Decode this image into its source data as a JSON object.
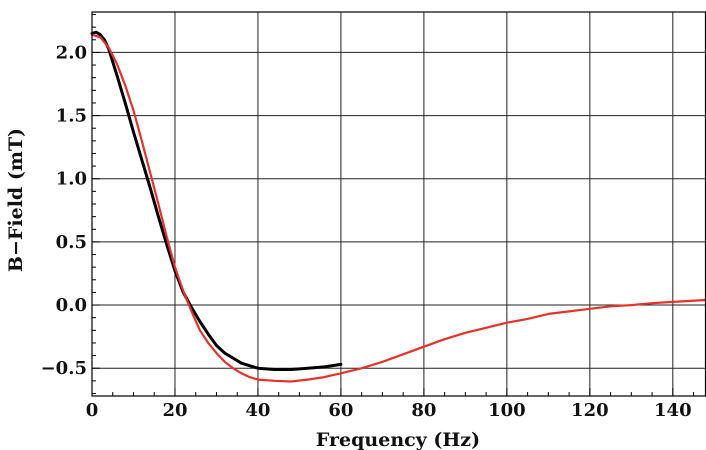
{
  "chart_data": {
    "type": "line",
    "xlabel": "Frequency (Hz)",
    "ylabel": "B−Field (mT)",
    "xlim": [
      0,
      148
    ],
    "ylim": [
      -0.72,
      2.32
    ],
    "grid": true,
    "x_ticks": [
      0,
      20,
      40,
      60,
      80,
      100,
      120,
      140
    ],
    "x_tick_labels": [
      "0",
      "20",
      "40",
      "60",
      "80",
      "100",
      "120",
      "140"
    ],
    "y_ticks": [
      -0.5,
      0.0,
      0.5,
      1.0,
      1.5,
      2.0
    ],
    "y_tick_labels": [
      "−0.5",
      "0.0",
      "0.5",
      "1.0",
      "1.5",
      "2.0"
    ],
    "series": [
      {
        "color": "#000000",
        "style": "measured",
        "points": [
          [
            0,
            2.15
          ],
          [
            1,
            2.16
          ],
          [
            2,
            2.14
          ],
          [
            3,
            2.1
          ],
          [
            4,
            2.03
          ],
          [
            6,
            1.82
          ],
          [
            8,
            1.6
          ],
          [
            10,
            1.37
          ],
          [
            12,
            1.15
          ],
          [
            14,
            0.93
          ],
          [
            16,
            0.7
          ],
          [
            18,
            0.48
          ],
          [
            20,
            0.27
          ],
          [
            22,
            0.1
          ],
          [
            24,
            -0.02
          ],
          [
            26,
            -0.13
          ],
          [
            28,
            -0.23
          ],
          [
            30,
            -0.32
          ],
          [
            32,
            -0.38
          ],
          [
            34,
            -0.42
          ],
          [
            36,
            -0.46
          ],
          [
            38,
            -0.48
          ],
          [
            40,
            -0.5
          ],
          [
            44,
            -0.51
          ],
          [
            48,
            -0.51
          ],
          [
            52,
            -0.5
          ],
          [
            56,
            -0.49
          ],
          [
            60,
            -0.47
          ]
        ]
      },
      {
        "color": "#e8312a",
        "style": "fit",
        "points": [
          [
            0,
            2.14
          ],
          [
            2,
            2.12
          ],
          [
            4,
            2.04
          ],
          [
            6,
            1.91
          ],
          [
            8,
            1.74
          ],
          [
            10,
            1.54
          ],
          [
            12,
            1.3
          ],
          [
            14,
            1.05
          ],
          [
            16,
            0.8
          ],
          [
            18,
            0.54
          ],
          [
            20,
            0.3
          ],
          [
            22,
            0.11
          ],
          [
            24,
            -0.05
          ],
          [
            26,
            -0.2
          ],
          [
            28,
            -0.3
          ],
          [
            30,
            -0.38
          ],
          [
            32,
            -0.45
          ],
          [
            34,
            -0.5
          ],
          [
            36,
            -0.54
          ],
          [
            38,
            -0.57
          ],
          [
            40,
            -0.59
          ],
          [
            44,
            -0.6
          ],
          [
            48,
            -0.605
          ],
          [
            52,
            -0.59
          ],
          [
            56,
            -0.57
          ],
          [
            60,
            -0.54
          ],
          [
            65,
            -0.5
          ],
          [
            70,
            -0.45
          ],
          [
            75,
            -0.39
          ],
          [
            80,
            -0.33
          ],
          [
            85,
            -0.27
          ],
          [
            90,
            -0.22
          ],
          [
            95,
            -0.18
          ],
          [
            100,
            -0.14
          ],
          [
            105,
            -0.11
          ],
          [
            110,
            -0.07
          ],
          [
            115,
            -0.05
          ],
          [
            120,
            -0.03
          ],
          [
            125,
            -0.01
          ],
          [
            130,
            0.0
          ],
          [
            135,
            0.015
          ],
          [
            140,
            0.025
          ],
          [
            148,
            0.04
          ]
        ]
      }
    ]
  }
}
